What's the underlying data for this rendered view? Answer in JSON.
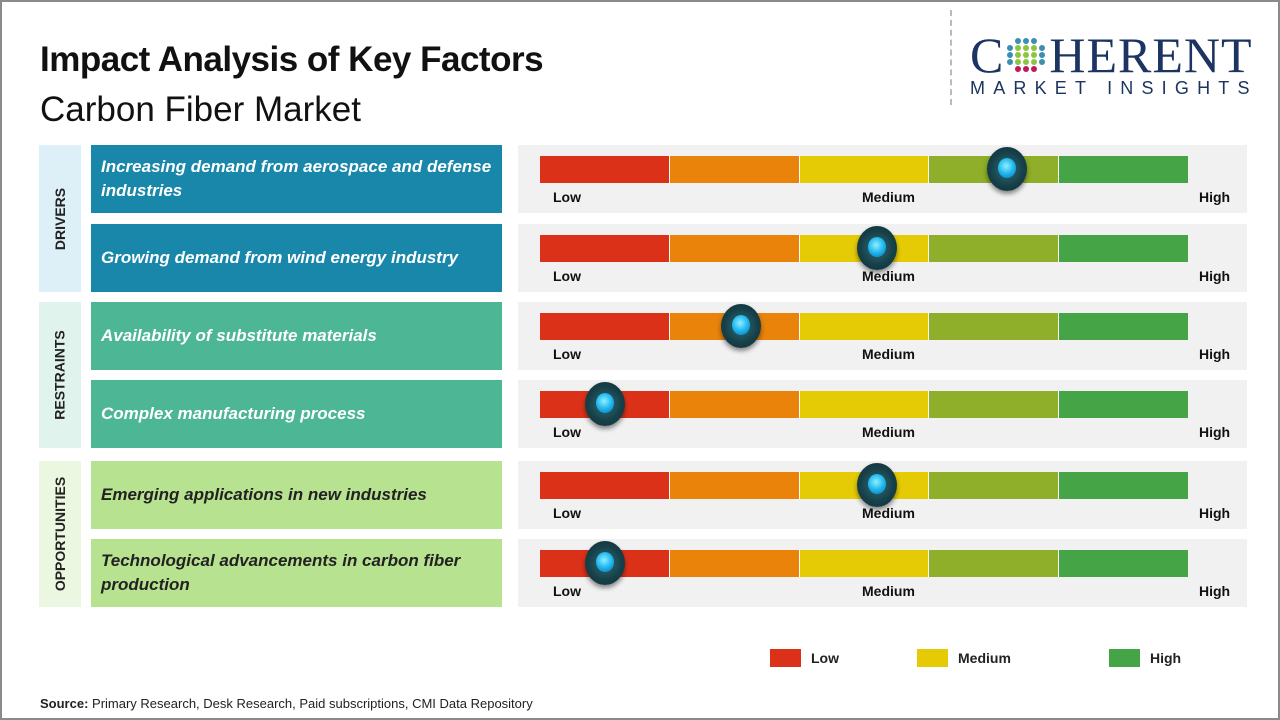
{
  "header": {
    "title": "Impact Analysis of Key Factors",
    "subtitle": "Carbon Fiber Market"
  },
  "logo": {
    "text_main": "COHERENT",
    "text_sub": "MARKET INSIGHTS"
  },
  "chart_data": {
    "type": "gauge",
    "scale_labels": [
      "Low",
      "Medium",
      "High"
    ],
    "segment_colors": [
      "#dc3119",
      "#e9830a",
      "#e5cb06",
      "#8fae29",
      "#45a446"
    ],
    "groups": [
      {
        "name": "DRIVERS",
        "label_color": "#1987a9",
        "band_color": "#ddf0f8",
        "text_color": "#ffffff",
        "items": [
          {
            "label": "Increasing demand from aerospace and defense industries",
            "value": 0.72
          },
          {
            "label": "Growing demand from wind energy industry",
            "value": 0.52
          }
        ]
      },
      {
        "name": "RESTRAINTS",
        "label_color": "#4db694",
        "band_color": "#e0f3ec",
        "text_color": "#ffffff",
        "items": [
          {
            "label": "Availability of substitute materials",
            "value": 0.31
          },
          {
            "label": "Complex manufacturing process",
            "value": 0.1
          }
        ]
      },
      {
        "name": "OPPORTUNITIES",
        "label_color": "#b7e391",
        "band_color": "#ebf7e1",
        "text_color": "#222222",
        "items": [
          {
            "label": "Emerging applications in new industries",
            "value": 0.52
          },
          {
            "label": "Technological advancements in carbon fiber production",
            "value": 0.1
          }
        ]
      }
    ],
    "legend": [
      {
        "label": "Low",
        "color": "#dc3119"
      },
      {
        "label": "Medium",
        "color": "#e5cb06"
      },
      {
        "label": "High",
        "color": "#45a446"
      }
    ]
  },
  "footer": {
    "source_label": "Source:",
    "source_text": " Primary Research, Desk Research, Paid subscriptions, CMI Data Repository"
  }
}
